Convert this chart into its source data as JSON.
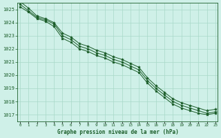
{
  "title": "Graphe pression niveau de la mer (hPa)",
  "background_color": "#cff0e8",
  "grid_color": "#a8d8c8",
  "line_color": "#1a5c28",
  "x_min": 0,
  "x_max": 23,
  "y_min": 1016.5,
  "y_max": 1025.5,
  "y_ticks": [
    1017,
    1018,
    1019,
    1020,
    1021,
    1022,
    1023,
    1024,
    1025
  ],
  "series1": [
    1025.2,
    1024.8,
    1024.3,
    1024.1,
    1023.7,
    1022.8,
    1022.5,
    1022.0,
    1021.8,
    1021.5,
    1021.3,
    1021.0,
    1020.8,
    1020.5,
    1020.2,
    1019.4,
    1018.8,
    1018.3,
    1017.8,
    1017.5,
    1017.3,
    1017.1,
    1017.0,
    1017.1
  ],
  "series2": [
    1025.4,
    1024.9,
    1024.4,
    1024.2,
    1023.9,
    1023.0,
    1022.7,
    1022.2,
    1022.0,
    1021.7,
    1021.5,
    1021.2,
    1021.0,
    1020.7,
    1020.4,
    1019.6,
    1019.0,
    1018.5,
    1018.0,
    1017.7,
    1017.5,
    1017.3,
    1017.1,
    1017.2
  ],
  "series3": [
    1025.6,
    1025.1,
    1024.5,
    1024.3,
    1024.0,
    1023.2,
    1022.9,
    1022.4,
    1022.2,
    1021.9,
    1021.7,
    1021.4,
    1021.2,
    1020.9,
    1020.6,
    1019.8,
    1019.2,
    1018.7,
    1018.2,
    1017.9,
    1017.7,
    1017.5,
    1017.3,
    1017.4
  ]
}
